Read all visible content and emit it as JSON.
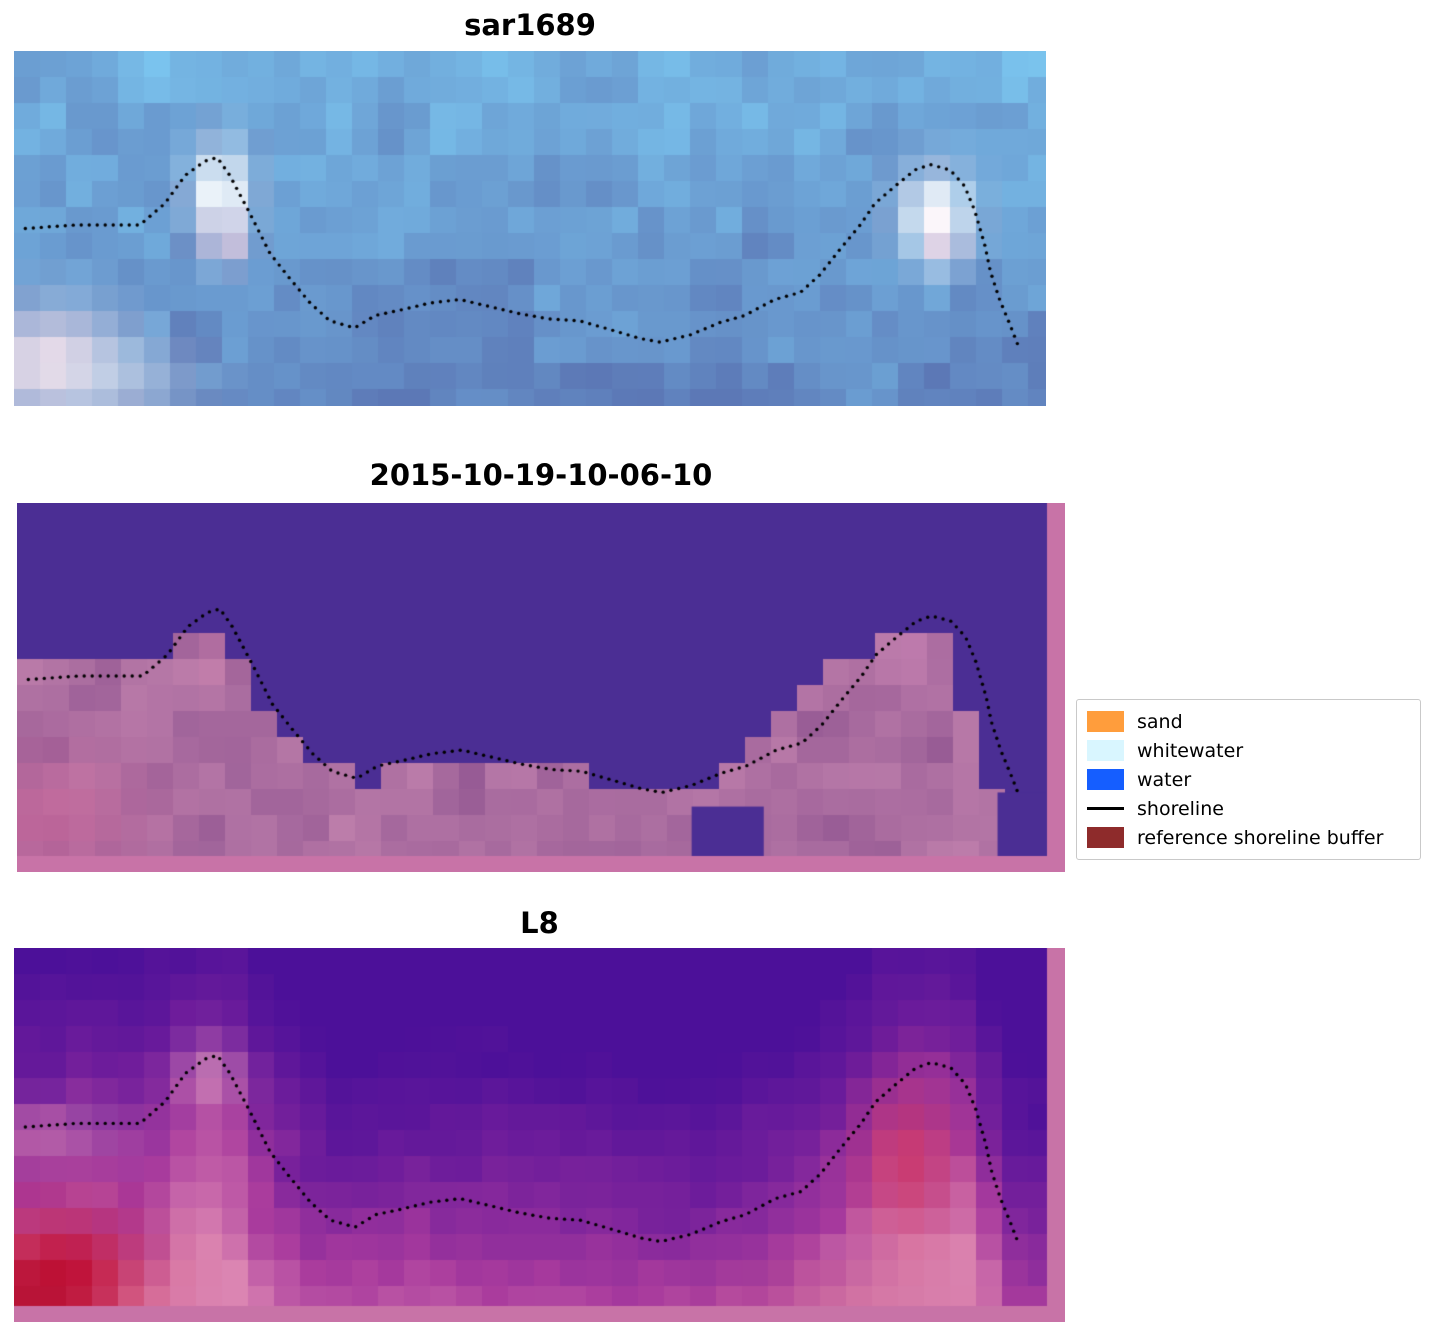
{
  "figure": {
    "panels": [
      {
        "title": "sar1689"
      },
      {
        "title": "2015-10-19-10-06-10"
      },
      {
        "title": "L8"
      }
    ],
    "legend": {
      "items": [
        {
          "label": "sand",
          "swatch": "patch",
          "color": "#ff9d3c"
        },
        {
          "label": "whitewater",
          "swatch": "patch",
          "color": "#d9f6ff"
        },
        {
          "label": "water",
          "swatch": "patch",
          "color": "#155eff"
        },
        {
          "label": "shoreline",
          "swatch": "line",
          "color": "#000000"
        },
        {
          "label": "reference shoreline buffer",
          "swatch": "patch",
          "color": "#8e2b2b"
        }
      ]
    }
  },
  "chart_data": {
    "type": "heatmap",
    "panel_titles": [
      "sar1689",
      "2015-10-19-10-06-10",
      "L8"
    ],
    "legend": [
      "sand",
      "whitewater",
      "water",
      "shoreline",
      "reference shoreline buffer"
    ],
    "shoreline_points": [
      [
        0.011,
        0.5
      ],
      [
        0.06,
        0.49
      ],
      [
        0.122,
        0.49
      ],
      [
        0.146,
        0.43
      ],
      [
        0.166,
        0.35
      ],
      [
        0.185,
        0.31
      ],
      [
        0.197,
        0.3
      ],
      [
        0.209,
        0.35
      ],
      [
        0.229,
        0.46
      ],
      [
        0.248,
        0.57
      ],
      [
        0.267,
        0.64
      ],
      [
        0.287,
        0.71
      ],
      [
        0.306,
        0.76
      ],
      [
        0.33,
        0.78
      ],
      [
        0.35,
        0.745
      ],
      [
        0.374,
        0.73
      ],
      [
        0.403,
        0.71
      ],
      [
        0.432,
        0.7
      ],
      [
        0.461,
        0.72
      ],
      [
        0.49,
        0.74
      ],
      [
        0.519,
        0.755
      ],
      [
        0.548,
        0.76
      ],
      [
        0.578,
        0.785
      ],
      [
        0.607,
        0.81
      ],
      [
        0.626,
        0.82
      ],
      [
        0.655,
        0.8
      ],
      [
        0.684,
        0.765
      ],
      [
        0.708,
        0.745
      ],
      [
        0.737,
        0.7
      ],
      [
        0.762,
        0.68
      ],
      [
        0.781,
        0.63
      ],
      [
        0.8,
        0.56
      ],
      [
        0.82,
        0.49
      ],
      [
        0.834,
        0.43
      ],
      [
        0.854,
        0.38
      ],
      [
        0.873,
        0.335
      ],
      [
        0.888,
        0.32
      ],
      [
        0.907,
        0.335
      ],
      [
        0.921,
        0.38
      ],
      [
        0.931,
        0.45
      ],
      [
        0.941,
        0.55
      ],
      [
        0.946,
        0.62
      ],
      [
        0.955,
        0.7
      ],
      [
        0.965,
        0.77
      ],
      [
        0.973,
        0.83
      ]
    ],
    "panels": [
      {
        "kind": "sar",
        "cell": 26,
        "seed": 7,
        "deep": "#5c78b6",
        "light": "#7cc8f1",
        "highlights": [
          [
            0.2,
            0.4,
            0.02,
            0.095,
            "#ffffff",
            1.0
          ],
          [
            0.205,
            0.53,
            0.013,
            0.05,
            "#f2cfe0",
            0.75
          ],
          [
            0.893,
            0.46,
            0.024,
            0.085,
            "#ffffff",
            1.0
          ],
          [
            0.9,
            0.55,
            0.013,
            0.045,
            "#f2cfe0",
            0.65
          ],
          [
            0.035,
            0.88,
            0.048,
            0.105,
            "#f3dfe9",
            0.95
          ],
          [
            0.1,
            0.94,
            0.05,
            0.08,
            "#d9e6f2",
            0.5
          ]
        ]
      },
      {
        "kind": "classified",
        "cell": 26,
        "seed": 21,
        "frame": "#c873a7",
        "water": "#4b2e94",
        "land_dark": "#8f5490",
        "land_light": "#c383ae",
        "land_top": [
          [
            0,
            0.47
          ],
          [
            0.05,
            0.47
          ],
          [
            0.055,
            0.41
          ],
          [
            0.145,
            0.41
          ],
          [
            0.15,
            0.385
          ],
          [
            0.205,
            0.385
          ],
          [
            0.215,
            0.45
          ],
          [
            0.24,
            0.56
          ],
          [
            0.27,
            0.66
          ],
          [
            0.3,
            0.74
          ],
          [
            0.335,
            0.8
          ],
          [
            0.365,
            0.73
          ],
          [
            0.4,
            0.71
          ],
          [
            0.46,
            0.71
          ],
          [
            0.47,
            0.755
          ],
          [
            0.55,
            0.775
          ],
          [
            0.6,
            0.815
          ],
          [
            0.655,
            0.815
          ],
          [
            0.68,
            0.77
          ],
          [
            0.7,
            0.72
          ],
          [
            0.73,
            0.63
          ],
          [
            0.76,
            0.55
          ],
          [
            0.79,
            0.47
          ],
          [
            0.82,
            0.43
          ],
          [
            0.845,
            0.385
          ],
          [
            0.855,
            0.345
          ],
          [
            0.885,
            0.34
          ],
          [
            0.9,
            0.41
          ],
          [
            0.915,
            0.51
          ],
          [
            0.93,
            0.63
          ],
          [
            0.94,
            0.73
          ],
          [
            0.95,
            0.82
          ],
          [
            0.958,
            1.0
          ],
          [
            1,
            1.0
          ]
        ],
        "water_rects": [
          [
            0.655,
            0.86,
            0.725,
            1.0
          ],
          [
            0.952,
            0.82,
            1.0,
            1.0
          ]
        ],
        "blobs": [
          [
            0.03,
            0.9,
            0.06,
            0.13,
            "#c9679a",
            0.7
          ],
          [
            0.865,
            0.42,
            0.022,
            0.09,
            "#d18ab8",
            0.65
          ],
          [
            0.19,
            0.44,
            0.016,
            0.05,
            "#c77ca9",
            0.55
          ]
        ]
      },
      {
        "kind": "l8",
        "cell": 26,
        "seed": 33,
        "frame": "#c873a7",
        "ramp": [
          "#4c1099",
          "#6f1d9b",
          "#a93b9d",
          "#db85b2"
        ],
        "blobs": [
          [
            0.045,
            0.92,
            0.055,
            0.12,
            "#c40e33",
            0.95
          ],
          [
            0.015,
            0.97,
            0.04,
            0.07,
            "#b30c2e",
            0.8
          ],
          [
            0.865,
            0.6,
            0.03,
            0.14,
            "#d63a5f",
            0.7
          ],
          [
            0.19,
            0.36,
            0.022,
            0.07,
            "#dd9dbf",
            0.65
          ],
          [
            0.035,
            0.52,
            0.05,
            0.06,
            "#cf84b2",
            0.55
          ],
          [
            0.8,
            0.96,
            0.08,
            0.07,
            "#c95f8e",
            0.4
          ]
        ]
      }
    ]
  }
}
